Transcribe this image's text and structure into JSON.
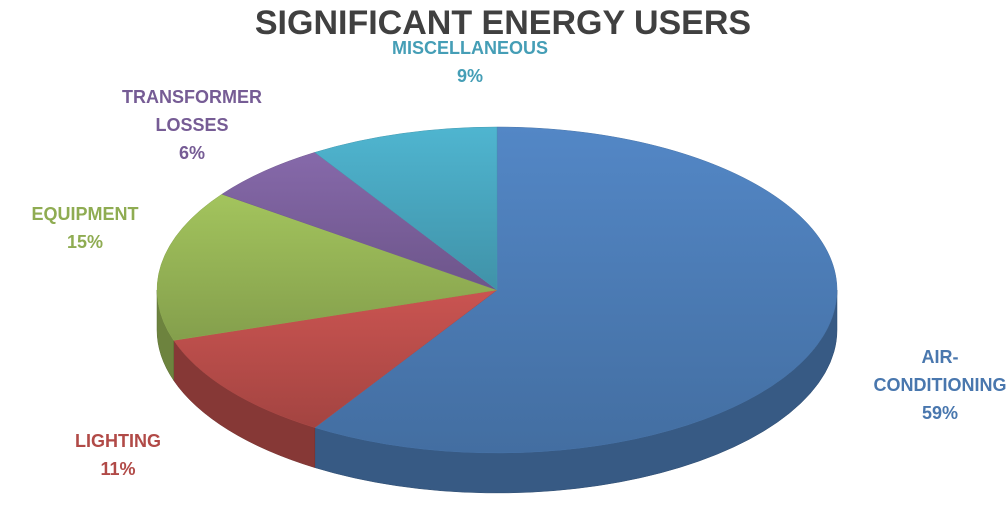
{
  "chart_data": {
    "type": "pie3d",
    "title": "SIGNIFICANT ENERGY USERS",
    "categories": [
      "AIR-CONDITIONING",
      "LIGHTING",
      "EQUIPMENT",
      "TRANSFORMER LOSSES",
      "MISCELLANEOUS"
    ],
    "values": [
      59,
      11,
      15,
      6,
      9
    ],
    "value_labels": [
      "59%",
      "11%",
      "15%",
      "6%",
      "9%"
    ],
    "colors": [
      "#4f81bd",
      "#c0504d",
      "#9bbb59",
      "#8064a2",
      "#4bacc6"
    ]
  }
}
